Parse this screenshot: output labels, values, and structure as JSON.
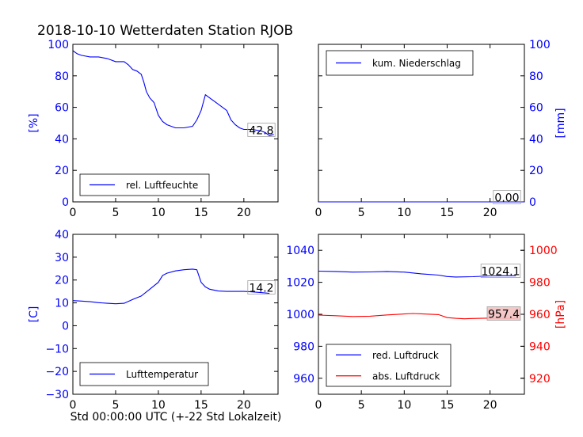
{
  "title": "2018-10-10 Wetterdaten Station RJOB",
  "xlabel": "Std 00:00:00 UTC (+-22 Std Lokalzeit)",
  "colors": {
    "blue": "#0000ff",
    "red": "#ff0000",
    "axis": "#000000",
    "badge_red_fill": "#f4c2c2"
  },
  "chart_data": [
    {
      "id": "humidity",
      "type": "line",
      "ylabel": "[%]",
      "ylabel_side": "left",
      "xlim": [
        0,
        24
      ],
      "ylim": [
        0,
        100
      ],
      "xticks": [
        0,
        5,
        10,
        15,
        20
      ],
      "yticks": [
        0,
        20,
        40,
        60,
        80,
        100
      ],
      "ytick_color": "blue",
      "legend": "bottom-left",
      "current_value": "42.8",
      "series": [
        {
          "name": "rel. Luftfeuchte",
          "color": "blue",
          "points": [
            [
              0,
              96
            ],
            [
              0.5,
              94
            ],
            [
              1,
              93
            ],
            [
              2,
              92
            ],
            [
              3,
              92
            ],
            [
              4,
              91
            ],
            [
              5,
              89
            ],
            [
              6,
              89
            ],
            [
              6.5,
              87
            ],
            [
              7,
              84
            ],
            [
              7.5,
              83
            ],
            [
              8,
              81
            ],
            [
              8.3,
              76
            ],
            [
              8.6,
              70
            ],
            [
              9,
              66
            ],
            [
              9.5,
              63
            ],
            [
              10,
              55
            ],
            [
              10.5,
              51
            ],
            [
              11,
              49
            ],
            [
              11.5,
              48
            ],
            [
              12,
              47
            ],
            [
              13,
              47
            ],
            [
              14,
              48
            ],
            [
              14.5,
              52
            ],
            [
              15,
              58
            ],
            [
              15.5,
              68
            ],
            [
              16,
              66
            ],
            [
              16.5,
              64
            ],
            [
              17,
              62
            ],
            [
              17.5,
              60
            ],
            [
              18,
              58
            ],
            [
              18.5,
              52
            ],
            [
              19,
              49
            ],
            [
              19.5,
              47
            ],
            [
              20,
              46
            ],
            [
              21,
              46
            ],
            [
              22,
              45
            ],
            [
              22.5,
              44
            ],
            [
              23,
              42
            ],
            [
              23.5,
              42.8
            ]
          ]
        }
      ]
    },
    {
      "id": "precip",
      "type": "line",
      "ylabel": "[mm]",
      "ylabel_side": "right",
      "xlim": [
        0,
        24
      ],
      "ylim": [
        0,
        100
      ],
      "xticks": [
        0,
        5,
        10,
        15,
        20
      ],
      "yticks": [
        0,
        20,
        40,
        60,
        80,
        100
      ],
      "ytick_color": "blue",
      "legend": "top-left",
      "current_value": "0.00",
      "series": [
        {
          "name": "kum. Niederschlag",
          "color": "blue",
          "points": [
            [
              0,
              0
            ],
            [
              24,
              0
            ]
          ]
        }
      ]
    },
    {
      "id": "temperature",
      "type": "line",
      "ylabel": "[C]",
      "ylabel_side": "left",
      "xlim": [
        0,
        24
      ],
      "ylim": [
        -30,
        40
      ],
      "xticks": [
        0,
        5,
        10,
        15,
        20
      ],
      "yticks": [
        -30,
        -20,
        -10,
        0,
        10,
        20,
        30,
        40
      ],
      "ytick_color": "blue",
      "legend": "bottom-left",
      "current_value": "14.2",
      "series": [
        {
          "name": "Lufttemperatur",
          "color": "blue",
          "points": [
            [
              0,
              11
            ],
            [
              1,
              10.8
            ],
            [
              2,
              10.5
            ],
            [
              3,
              10.1
            ],
            [
              4,
              9.8
            ],
            [
              5,
              9.6
            ],
            [
              6,
              9.8
            ],
            [
              7,
              11.5
            ],
            [
              8,
              13
            ],
            [
              9,
              16
            ],
            [
              10,
              19
            ],
            [
              10.5,
              22
            ],
            [
              11,
              23
            ],
            [
              12,
              24
            ],
            [
              13,
              24.5
            ],
            [
              14,
              24.8
            ],
            [
              14.5,
              24.5
            ],
            [
              15,
              19
            ],
            [
              15.5,
              17
            ],
            [
              16,
              16
            ],
            [
              17,
              15.2
            ],
            [
              18,
              15
            ],
            [
              19,
              15
            ],
            [
              20,
              15
            ],
            [
              21,
              14.8
            ],
            [
              22,
              14.5
            ],
            [
              23,
              14.2
            ]
          ]
        }
      ]
    },
    {
      "id": "pressure",
      "type": "line",
      "ylabel": "[hPa]",
      "ylabel_side": "right",
      "xlim": [
        0,
        24
      ],
      "ylim": [
        950,
        1050
      ],
      "ylim_right": [
        910,
        1010
      ],
      "xticks": [
        0,
        5,
        10,
        15,
        20
      ],
      "yticks": [
        960,
        980,
        1000,
        1020,
        1040
      ],
      "yticks_right": [
        920,
        940,
        960,
        980,
        1000
      ],
      "ytick_color": "blue",
      "ytick_color_right": "red",
      "legend": "bottom-left",
      "current_value": "1024.1",
      "current_value_2": "957.4",
      "series": [
        {
          "name": "red. Luftdruck",
          "color": "blue",
          "axis": "left",
          "points": [
            [
              0,
              1027
            ],
            [
              2,
              1026.8
            ],
            [
              4,
              1026.4
            ],
            [
              6,
              1026.5
            ],
            [
              8,
              1026.8
            ],
            [
              10,
              1026.4
            ],
            [
              12,
              1025.3
            ],
            [
              14,
              1024.5
            ],
            [
              15,
              1023.6
            ],
            [
              16,
              1023.3
            ],
            [
              18,
              1023.5
            ],
            [
              20,
              1024
            ],
            [
              22,
              1024.1
            ],
            [
              23,
              1024.1
            ]
          ]
        },
        {
          "name": "abs. Luftdruck",
          "color": "red",
          "axis": "right",
          "points": [
            [
              0,
              959.5
            ],
            [
              2,
              959.1
            ],
            [
              4,
              958.6
            ],
            [
              6,
              958.8
            ],
            [
              8,
              959.6
            ],
            [
              10,
              960.2
            ],
            [
              11,
              960.5
            ],
            [
              12,
              960.3
            ],
            [
              14,
              959.8
            ],
            [
              15,
              957.9
            ],
            [
              16,
              957.5
            ],
            [
              17,
              957.2
            ],
            [
              18,
              957.4
            ],
            [
              20,
              957.6
            ],
            [
              22,
              957.5
            ],
            [
              23,
              957.4
            ]
          ]
        }
      ]
    }
  ]
}
